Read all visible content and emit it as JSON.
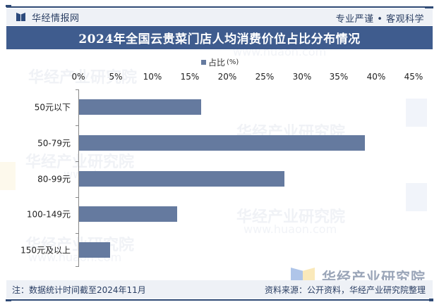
{
  "header": {
    "brand": "华经情报网",
    "slogan": "专业严谨 • 客观科学"
  },
  "title": "2024年全国云贵菜门店人均消费价位占比分布情况",
  "legend": {
    "label": "占比",
    "unit": "(%)"
  },
  "axis": {
    "ticks": [
      "0%",
      "5%",
      "10%",
      "15%",
      "20%",
      "25%",
      "30%",
      "35%",
      "40%",
      "45%"
    ]
  },
  "categories": [
    {
      "label": "50元以下",
      "value": 16.4
    },
    {
      "label": "50-79元",
      "value": 38.4
    },
    {
      "label": "80-99元",
      "value": 27.6
    },
    {
      "label": "100-149元",
      "value": 13.2
    },
    {
      "label": "150元及以上",
      "value": 4.2
    }
  ],
  "footer": {
    "note": "注：数据统计时间截至2024年11月",
    "source": "资料来源：公开资料，华经产业研究院整理"
  },
  "watermark": {
    "text": "华经产业研究院",
    "url": "www.huaon.com",
    "logo_text": "华经产业研究院"
  },
  "colors": {
    "bar": "#657a9f",
    "title_bar": "#3f5c8e",
    "header_bg": "#eef1f6",
    "rule": "#2f4a75"
  },
  "chart_data": {
    "type": "bar",
    "orientation": "horizontal",
    "title": "2024年全国云贵菜门店人均消费价位占比分布情况",
    "categories": [
      "50元以下",
      "50-79元",
      "80-99元",
      "100-149元",
      "150元及以上"
    ],
    "series": [
      {
        "name": "占比(%)",
        "values": [
          16.4,
          38.4,
          27.6,
          13.2,
          4.2
        ]
      }
    ],
    "xlabel": "",
    "ylabel": "",
    "xlim": [
      0,
      45
    ],
    "x_ticks": [
      "0%",
      "5%",
      "10%",
      "15%",
      "20%",
      "25%",
      "30%",
      "35%",
      "40%",
      "45%"
    ],
    "x_axis_position": "top",
    "legend_position": "top",
    "grid": false
  }
}
